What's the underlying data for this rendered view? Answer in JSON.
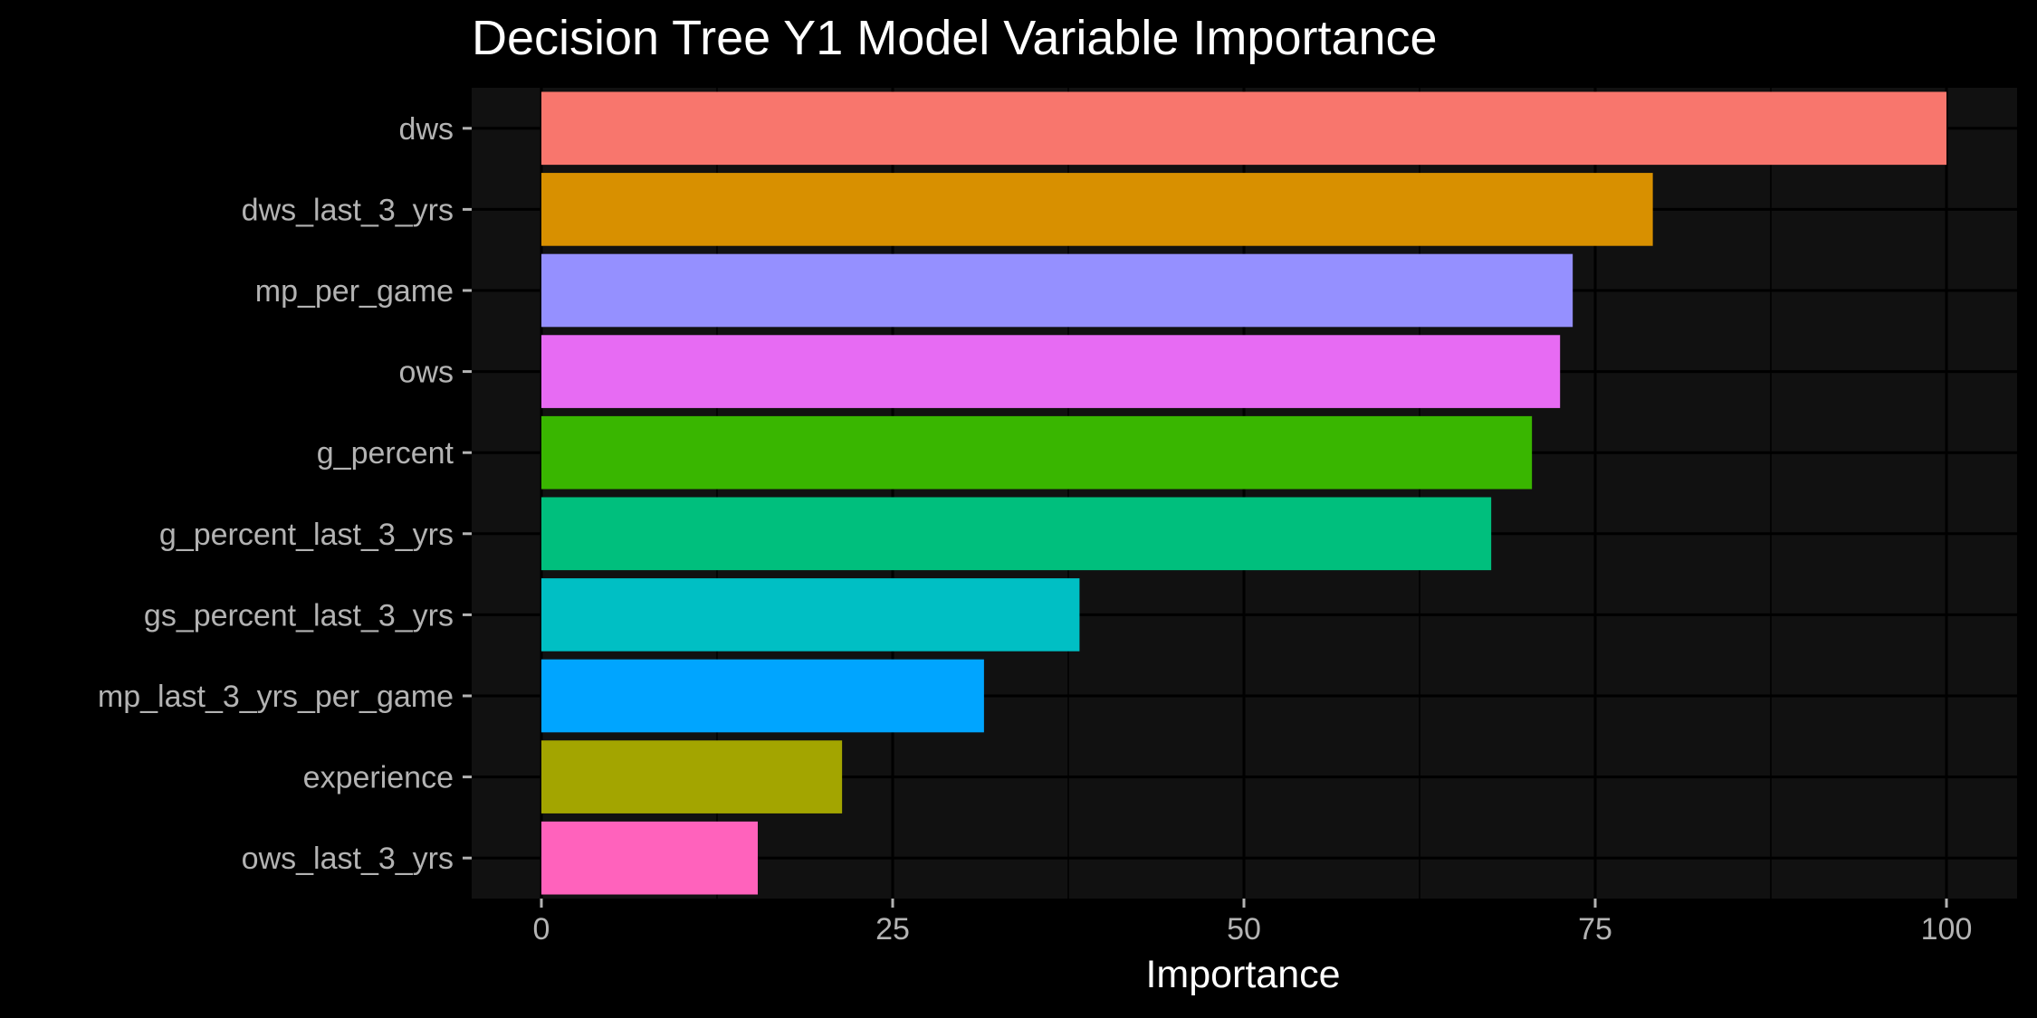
{
  "chart_data": {
    "type": "bar",
    "orientation": "horizontal",
    "title": "Decision Tree Y1 Model Variable Importance",
    "xlabel": "Importance",
    "ylabel": "",
    "xlim": [
      -4.5,
      105
    ],
    "x_ticks": [
      0,
      25,
      50,
      75,
      100
    ],
    "grid": true,
    "legend": "none",
    "categories": [
      "dws",
      "dws_last_3_yrs",
      "mp_per_game",
      "ows",
      "g_percent",
      "g_percent_last_3_yrs",
      "gs_percent_last_3_yrs",
      "mp_last_3_yrs_per_game",
      "experience",
      "ows_last_3_yrs"
    ],
    "values": [
      100,
      79.1,
      73.4,
      72.5,
      70.5,
      67.6,
      38.3,
      31.5,
      21.4,
      15.4
    ],
    "colors": [
      "#F8766D",
      "#D89000",
      "#9590FF",
      "#E76BF3",
      "#39B600",
      "#00BF7D",
      "#00BFC4",
      "#00A5FF",
      "#A3A500",
      "#FF62BC"
    ]
  }
}
